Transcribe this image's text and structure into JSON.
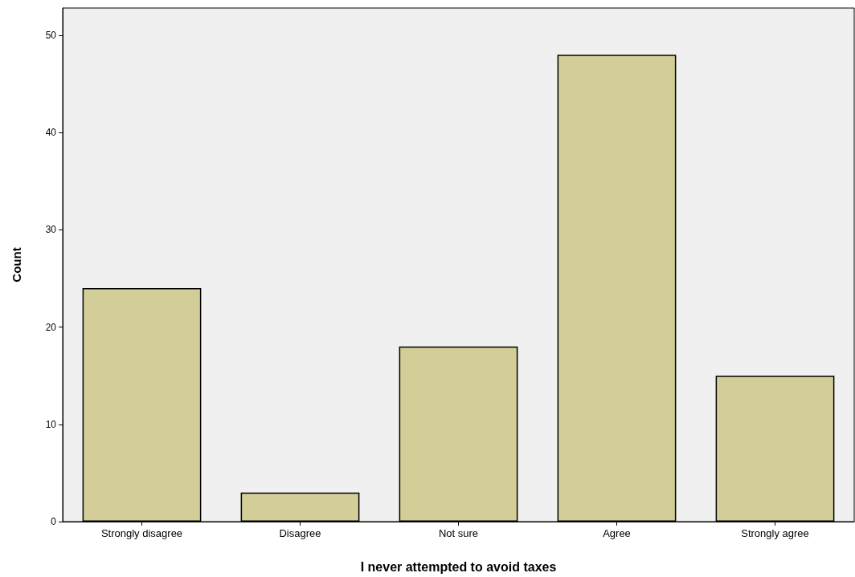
{
  "chart_data": {
    "type": "bar",
    "xlabel": "I never attempted to avoid taxes",
    "ylabel": "Count",
    "categories": [
      "Strongly disagree",
      "Disagree",
      "Not sure",
      "Agree",
      "Strongly agree"
    ],
    "values": [
      24,
      3,
      18,
      48,
      15
    ],
    "color": "#d3ce97",
    "ylim": [
      0,
      52.8
    ],
    "yticks": [
      0,
      10,
      20,
      30,
      40,
      50
    ],
    "grid": false
  }
}
